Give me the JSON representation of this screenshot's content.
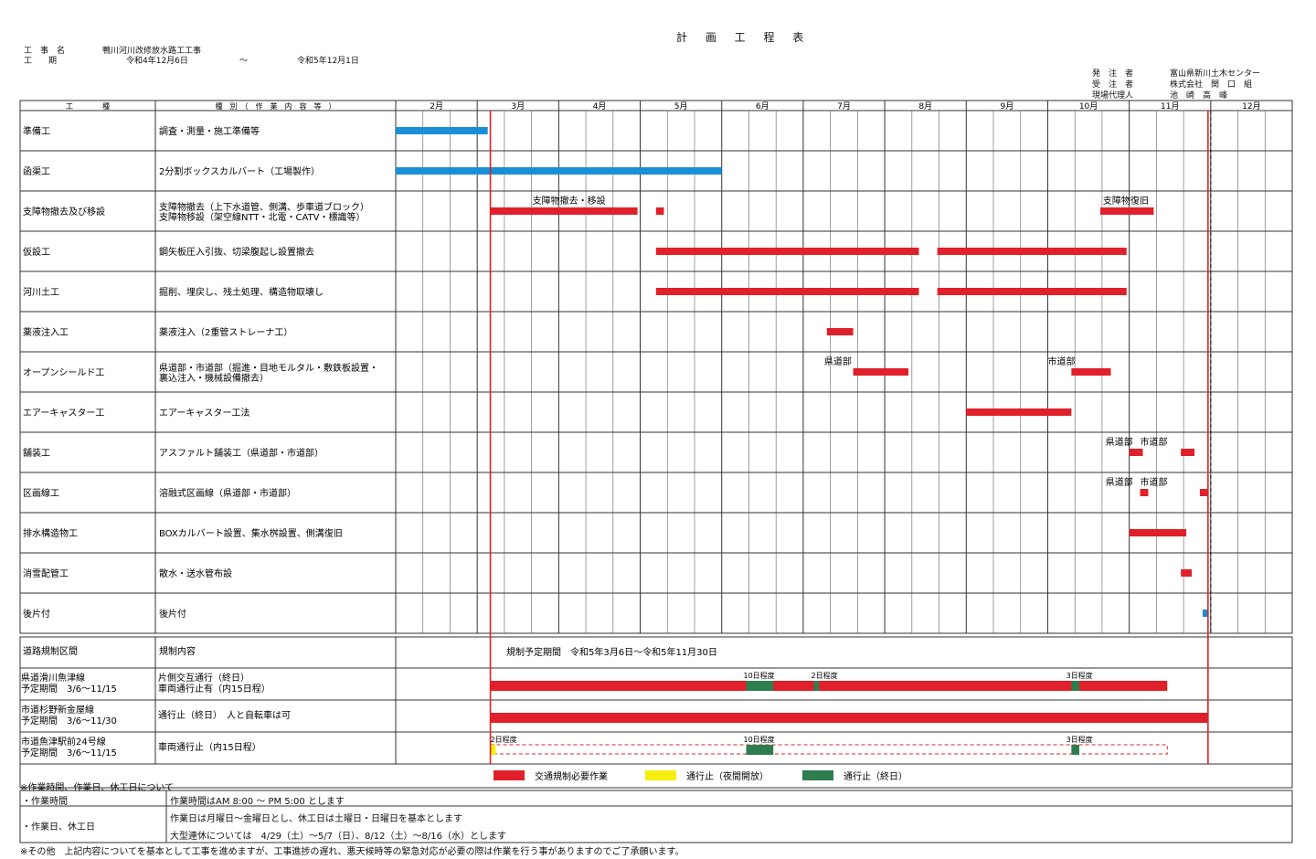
{
  "title": "計 画 工 程 表",
  "header": {
    "project_label": "工　事　名",
    "project_value": "鴨川河川改修放水路工工事",
    "period_label": "工　　期",
    "period_start": "令和4年12月6日",
    "period_tilde": "～",
    "period_end": "令和5年12月1日"
  },
  "orderer": {
    "labels": [
      "発　注　者",
      "受　注　者",
      "現場代理人"
    ],
    "values": [
      "富山県新川土木センター",
      "株式会社　関　口　組",
      "池　崎　高　峰"
    ]
  },
  "columns": {
    "kind": "工　　　　種",
    "detail": "種　別　（　作　業　内　容　等　）"
  },
  "months": [
    "2月",
    "3月",
    "4月",
    "5月",
    "6月",
    "7月",
    "8月",
    "9月",
    "10月",
    "11月",
    "12月"
  ],
  "rows": [
    {
      "kind": "準備工",
      "detail": [
        "調査・測量・施工準備等"
      ]
    },
    {
      "kind": "函渠工",
      "detail": [
        "2分割ボックスカルバート（工場製作）"
      ]
    },
    {
      "kind": "支障物撤去及び移設",
      "detail": [
        "支障物撤去（上下水道管、側溝、歩車道ブロック）",
        "支障物移設（架空線NTT・北電・CATV・標識等）"
      ]
    },
    {
      "kind": "仮設工",
      "detail": [
        "鋼矢板圧入引抜、切梁腹起し設置撤去"
      ]
    },
    {
      "kind": "河川土工",
      "detail": [
        "掘削、埋戻し、残土処理、構造物取壊し"
      ]
    },
    {
      "kind": "薬液注入工",
      "detail": [
        "薬液注入（2重管ストレーナ工）"
      ]
    },
    {
      "kind": "オープンシールド工",
      "detail": [
        "県道部・市道部（掘進・目地モルタル・敷鉄板設置・",
        "裏込注入・機械設備撤去）"
      ]
    },
    {
      "kind": "エアーキャスター工",
      "detail": [
        "エアーキャスター工法"
      ]
    },
    {
      "kind": "舗装工",
      "detail": [
        "アスファルト舗装工（県道部・市道部）"
      ]
    },
    {
      "kind": "区画線工",
      "detail": [
        "溶融式区画線（県道部・市道部）"
      ]
    },
    {
      "kind": "排水構造物工",
      "detail": [
        "BOXカルバート設置、集水桝設置、側溝復旧"
      ]
    },
    {
      "kind": "消雪配管工",
      "detail": [
        "散水・送水管布設"
      ]
    },
    {
      "kind": "後片付",
      "detail": [
        "後片付"
      ]
    }
  ],
  "bar_labels": [
    {
      "text": "支障物撤去・移設",
      "row": 2,
      "date": "3/22"
    },
    {
      "text": "支障物復旧",
      "row": 2,
      "date": "10/22"
    },
    {
      "text": "県道部",
      "row": 6,
      "date": "7/9"
    },
    {
      "text": "市道部",
      "row": 6,
      "date": "10/1"
    },
    {
      "text": "県道部",
      "row": 8,
      "date": "10/23"
    },
    {
      "text": "市道部",
      "row": 8,
      "date": "11/5"
    },
    {
      "text": "県道部",
      "row": 9,
      "date": "10/23"
    },
    {
      "text": "市道部",
      "row": 9,
      "date": "11/5"
    }
  ],
  "chart_data": {
    "type": "gantt",
    "x_unit": "date (M/D)",
    "regulation_start": "3/6",
    "regulation_end": "11/30",
    "tasks": [
      {
        "row": 0,
        "start": "2/1",
        "end": "3/5",
        "color": "blue"
      },
      {
        "row": 1,
        "start": "2/1",
        "end": "6/1",
        "color": "blue"
      },
      {
        "row": 2,
        "start": "3/6",
        "end": "4/30",
        "color": "red"
      },
      {
        "row": 2,
        "start": "5/7",
        "end": "5/10",
        "color": "red"
      },
      {
        "row": 2,
        "start": "10/21",
        "end": "11/10",
        "color": "red"
      },
      {
        "row": 3,
        "start": "5/7",
        "end": "8/14",
        "color": "red"
      },
      {
        "row": 3,
        "start": "8/21",
        "end": "10/31",
        "color": "red"
      },
      {
        "row": 4,
        "start": "5/7",
        "end": "8/14",
        "color": "red"
      },
      {
        "row": 4,
        "start": "8/21",
        "end": "10/31",
        "color": "red"
      },
      {
        "row": 5,
        "start": "7/10",
        "end": "7/20",
        "color": "red"
      },
      {
        "row": 6,
        "start": "7/20",
        "end": "8/10",
        "color": "red"
      },
      {
        "row": 6,
        "start": "10/10",
        "end": "10/25",
        "color": "red"
      },
      {
        "row": 7,
        "start": "9/1",
        "end": "10/10",
        "color": "red"
      },
      {
        "row": 8,
        "start": "11/1",
        "end": "11/6",
        "color": "red"
      },
      {
        "row": 8,
        "start": "11/20",
        "end": "11/25",
        "color": "red"
      },
      {
        "row": 9,
        "start": "11/5",
        "end": "11/8",
        "color": "red"
      },
      {
        "row": 9,
        "start": "11/27",
        "end": "11/30",
        "color": "red"
      },
      {
        "row": 10,
        "start": "11/1",
        "end": "11/22",
        "color": "red"
      },
      {
        "row": 11,
        "start": "11/20",
        "end": "11/24",
        "color": "red"
      },
      {
        "row": 12,
        "start": "11/28",
        "end": "11/30",
        "color": "blue"
      }
    ],
    "markers": [
      {
        "date": "3/6",
        "style": "red-solid"
      },
      {
        "date": "11/30",
        "style": "red-solid"
      },
      {
        "date": "12/1",
        "style": "black-dashed"
      }
    ]
  },
  "regulation": {
    "header_kind": "道路規制区間",
    "header_detail": "規制内容",
    "header_period": "規制予定期間　令和5年3月6日～令和5年11月30日",
    "rows": [
      {
        "name": "県道滑川魚津線",
        "period": "予定期間　3/6～11/15",
        "detail": [
          "片側交互通行（終日）",
          "車両通行止有（内15日程）"
        ]
      },
      {
        "name": "市道杉野新金屋線",
        "period": "予定期間　3/6～11/30",
        "detail": [
          "通行止（終日）　人と自転車は可"
        ]
      },
      {
        "name": "市道魚津駅前24号線",
        "period": "予定期間　3/6～11/15",
        "detail": [
          "車両通行止（内15日程）"
        ]
      }
    ],
    "bars": [
      {
        "row": 0,
        "start": "3/6",
        "end": "11/15",
        "type": "red-solid"
      },
      {
        "row": 0,
        "start": "6/10",
        "end": "6/20",
        "type": "green"
      },
      {
        "row": 0,
        "start": "7/5",
        "end": "7/7",
        "type": "green"
      },
      {
        "row": 0,
        "start": "10/10",
        "end": "10/13",
        "type": "green"
      },
      {
        "row": 1,
        "start": "3/6",
        "end": "11/30",
        "type": "red-solid"
      },
      {
        "row": 2,
        "start": "3/6",
        "end": "11/15",
        "type": "red-dashed"
      },
      {
        "row": 2,
        "start": "3/6",
        "end": "3/8",
        "type": "yellow"
      },
      {
        "row": 2,
        "start": "6/10",
        "end": "6/20",
        "type": "green"
      },
      {
        "row": 2,
        "start": "10/10",
        "end": "10/13",
        "type": "green"
      }
    ],
    "bar_labels": [
      {
        "text": "10日程度",
        "row": 0,
        "date": "6/9"
      },
      {
        "text": "2日程度",
        "row": 0,
        "date": "7/4"
      },
      {
        "text": "3日程度",
        "row": 0,
        "date": "10/8"
      },
      {
        "text": "2日程度",
        "row": 2,
        "date": "3/6"
      },
      {
        "text": "10日程度",
        "row": 2,
        "date": "6/9"
      },
      {
        "text": "3日程度",
        "row": 2,
        "date": "10/8"
      }
    ]
  },
  "legend": [
    {
      "label": "交通規制必要作業",
      "color": "#e0202a"
    },
    {
      "label": "通行止（夜間開放）",
      "color": "#f5ee10"
    },
    {
      "label": "通行止（終日）",
      "color": "#2e7d4f"
    }
  ],
  "notes": {
    "heading": "※作業時間、作業日、休工日について",
    "hours_label": "・作業時間",
    "hours_text": "作業時間はAM 8:00 ～ PM 5:00 とします",
    "days_label": "・作業日、休工日",
    "days_text1": "作業日は月曜日～金曜日とし、休工日は土曜日・日曜日を基本とします",
    "days_text2": "大型連休については　4/29（土）～5/7（日）、8/12（土）～8/16（水）とします",
    "footer": "※その他　上記内容についてを基本として工事を進めますが、工事進捗の遅れ、悪天候時等の緊急対応が必要の際は作業を行う事がありますのでご了承願います。"
  },
  "colors": {
    "red": "#e0202a",
    "blue": "#1a8fd6",
    "green": "#2e7d4f",
    "yellow": "#f5ee10",
    "line": "#333333"
  }
}
